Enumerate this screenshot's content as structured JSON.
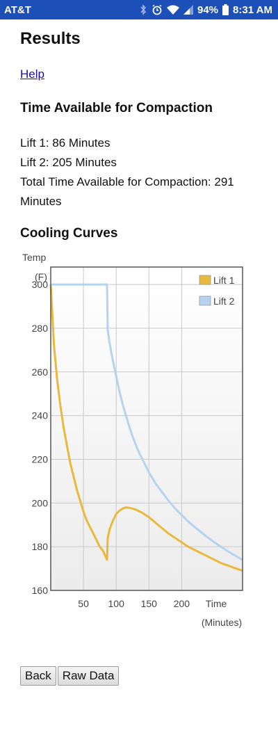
{
  "statusbar": {
    "carrier": "AT&T",
    "battery": "94%",
    "time": "8:31 AM"
  },
  "page": {
    "title": "Results",
    "help_link": "Help",
    "section_time": "Time Available for Compaction",
    "lift1_text": "Lift 1: 86 Minutes",
    "lift2_text": "Lift 2: 205 Minutes",
    "total_text": "Total Time Available for Compaction: 291 Minutes",
    "section_curves": "Cooling Curves"
  },
  "buttons": {
    "back": "Back",
    "raw_data": "Raw Data"
  },
  "chart_data": {
    "type": "line",
    "ylabel_top": "Temp",
    "ylabel_unit": "(F)",
    "xlabel": "Time",
    "xlabel_unit": "(Minutes)",
    "xlim": [
      0,
      293
    ],
    "ylim": [
      160,
      308
    ],
    "x_ticks": [
      50,
      100,
      150,
      200
    ],
    "y_ticks": [
      160,
      180,
      200,
      220,
      240,
      260,
      280,
      300
    ],
    "grid": true,
    "legend_position": "top-right",
    "series": [
      {
        "name": "Lift 1",
        "color": "#e8b93a",
        "points": [
          [
            0,
            300
          ],
          [
            5,
            272
          ],
          [
            10,
            256
          ],
          [
            15,
            244
          ],
          [
            20,
            234
          ],
          [
            25,
            226
          ],
          [
            30,
            218
          ],
          [
            35,
            212
          ],
          [
            40,
            206
          ],
          [
            45,
            201
          ],
          [
            50,
            196
          ],
          [
            55,
            192
          ],
          [
            60,
            189
          ],
          [
            65,
            186
          ],
          [
            70,
            183
          ],
          [
            75,
            180
          ],
          [
            80,
            178
          ],
          [
            86,
            174
          ],
          [
            87,
            184
          ],
          [
            90,
            188
          ],
          [
            95,
            192
          ],
          [
            100,
            195
          ],
          [
            105,
            196.5
          ],
          [
            110,
            197.5
          ],
          [
            115,
            198
          ],
          [
            120,
            197.8
          ],
          [
            130,
            197
          ],
          [
            140,
            195.5
          ],
          [
            150,
            193.5
          ],
          [
            160,
            191
          ],
          [
            170,
            188.5
          ],
          [
            180,
            186
          ],
          [
            190,
            184
          ],
          [
            200,
            182
          ],
          [
            210,
            180
          ],
          [
            220,
            178.5
          ],
          [
            230,
            177
          ],
          [
            240,
            175.5
          ],
          [
            250,
            174
          ],
          [
            260,
            172.5
          ],
          [
            270,
            171.5
          ],
          [
            280,
            170.3
          ],
          [
            293,
            169
          ]
        ]
      },
      {
        "name": "Lift 2",
        "color": "#b5d3ee",
        "points": [
          [
            0,
            300
          ],
          [
            86,
            300
          ],
          [
            87,
            279
          ],
          [
            90,
            273
          ],
          [
            95,
            265
          ],
          [
            100,
            258
          ],
          [
            105,
            251
          ],
          [
            110,
            245
          ],
          [
            115,
            240
          ],
          [
            120,
            235
          ],
          [
            125,
            230.5
          ],
          [
            130,
            226.5
          ],
          [
            135,
            223
          ],
          [
            140,
            220
          ],
          [
            145,
            217
          ],
          [
            150,
            214
          ],
          [
            155,
            211.5
          ],
          [
            160,
            209
          ],
          [
            165,
            207
          ],
          [
            170,
            205
          ],
          [
            180,
            201
          ],
          [
            190,
            197.5
          ],
          [
            200,
            194.5
          ],
          [
            210,
            191.5
          ],
          [
            220,
            189
          ],
          [
            230,
            186.5
          ],
          [
            240,
            184.2
          ],
          [
            250,
            182
          ],
          [
            260,
            180
          ],
          [
            270,
            178
          ],
          [
            280,
            176.2
          ],
          [
            293,
            174
          ]
        ]
      }
    ]
  }
}
